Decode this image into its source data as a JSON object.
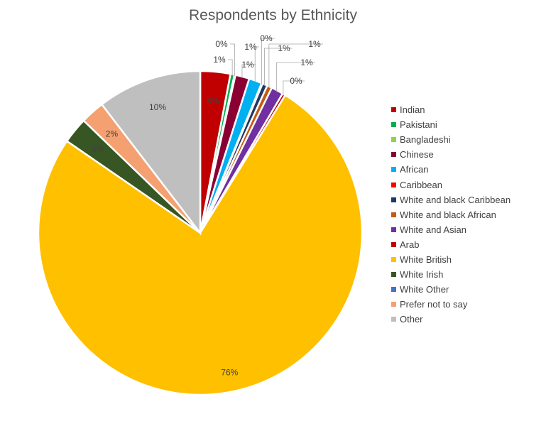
{
  "chart_data": {
    "type": "pie",
    "title": "Respondents by Ethnicity",
    "start_angle_deg": 0,
    "direction": "clockwise",
    "legend_position": "right",
    "slices": [
      {
        "name": "Indian",
        "value": 3,
        "label": "3%",
        "color": "#C00000"
      },
      {
        "name": "Pakistani",
        "value": 0.4,
        "label": "1%",
        "color": "#00B050"
      },
      {
        "name": "Bangladeshi",
        "value": 0.1,
        "label": "0%",
        "color": "#92D050"
      },
      {
        "name": "Chinese",
        "value": 1.4,
        "label": "1%",
        "color": "#8B0033"
      },
      {
        "name": "African",
        "value": 1.3,
        "label": "1%",
        "color": "#00B0F0"
      },
      {
        "name": "Caribbean",
        "value": 0.1,
        "label": "0%",
        "color": "#FF0000"
      },
      {
        "name": "White and black Caribbean",
        "value": 0.5,
        "label": "1%",
        "color": "#1F3864"
      },
      {
        "name": "White and black African",
        "value": 0.5,
        "label": "1%",
        "color": "#C55A11"
      },
      {
        "name": "White and Asian",
        "value": 1.2,
        "label": "1%",
        "color": "#7030A0"
      },
      {
        "name": "Arab",
        "value": 0.3,
        "label": "0%",
        "color": "#C00000"
      },
      {
        "name": "White British",
        "value": 75.8,
        "label": "76%",
        "color": "#FFC000"
      },
      {
        "name": "White Irish",
        "value": 2.6,
        "label": "3%",
        "color": "#375623"
      },
      {
        "name": "White Other",
        "value": 0,
        "label": "",
        "color": "#4472C4"
      },
      {
        "name": "Prefer not to say",
        "value": 2.4,
        "label": "2%",
        "color": "#F4A070"
      },
      {
        "name": "Other",
        "value": 10.4,
        "label": "10%",
        "color": "#BFBFBF"
      }
    ]
  }
}
